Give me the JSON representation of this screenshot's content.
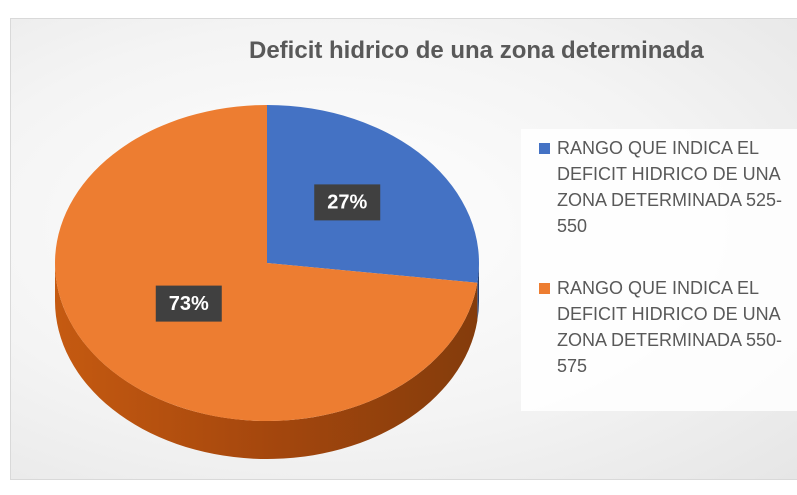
{
  "chart_data": {
    "type": "pie",
    "title": "Deficit hidrico de una zona determinada",
    "categories": [
      "RANGO QUE INDICA EL DEFICIT HIDRICO DE UNA ZONA DETERMINADA 525-550",
      "RANGO QUE INDICA EL DEFICIT HIDRICO DE UNA ZONA DETERMINADA 550-575"
    ],
    "values": [
      27,
      73
    ],
    "value_labels": [
      "27%",
      "73%"
    ],
    "colors": [
      "#4472c4",
      "#ed7d31"
    ],
    "legend": "right"
  }
}
